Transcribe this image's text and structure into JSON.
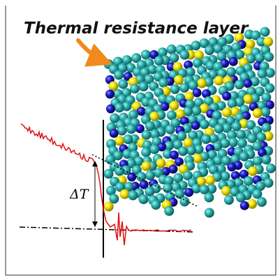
{
  "title": "Thermal resistance layer",
  "delta_label": "ΔT"
}
